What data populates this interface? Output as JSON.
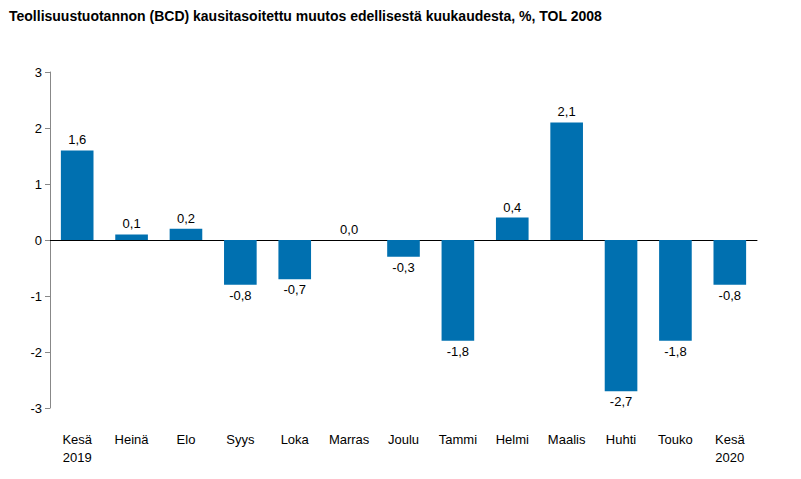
{
  "chart_data": {
    "type": "bar",
    "title": "Teollisuustuotannon (BCD) kausitasoitettu muutos edellisestä kuukaudesta, %, TOL 2008",
    "categories": [
      "Kesä\n2019",
      "Heinä",
      "Elo",
      "Syys",
      "Loka",
      "Marras",
      "Joulu",
      "Tammi",
      "Helmi",
      "Maalis",
      "Huhti",
      "Touko",
      "Kesä\n2020"
    ],
    "values": [
      1.6,
      0.1,
      0.2,
      -0.8,
      -0.7,
      0.0,
      -0.3,
      -1.8,
      0.4,
      2.1,
      -2.7,
      -1.8,
      -0.8
    ],
    "value_labels": [
      "1,6",
      "0,1",
      "0,2",
      "-0,8",
      "-0,7",
      "0,0",
      "-0,3",
      "-1,8",
      "0,4",
      "2,1",
      "-2,7",
      "-1,8",
      "-0,8"
    ],
    "color": "#0070b0",
    "ylim": [
      -3,
      3
    ],
    "yticks": [
      -3,
      -2,
      -1,
      0,
      1,
      2,
      3
    ],
    "grid": false,
    "data_labels": true
  }
}
